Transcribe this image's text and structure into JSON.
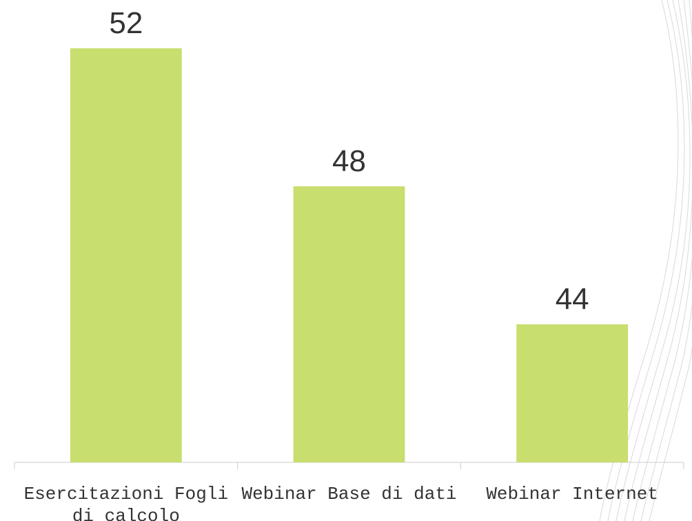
{
  "chart_data": {
    "type": "bar",
    "categories": [
      "Esercitazioni Fogli di calcolo",
      "Webinar Base di dati",
      "Webinar Internet"
    ],
    "values": [
      52,
      48,
      44
    ],
    "color": "#c8de6f",
    "ylim": [
      40,
      53.4
    ]
  }
}
